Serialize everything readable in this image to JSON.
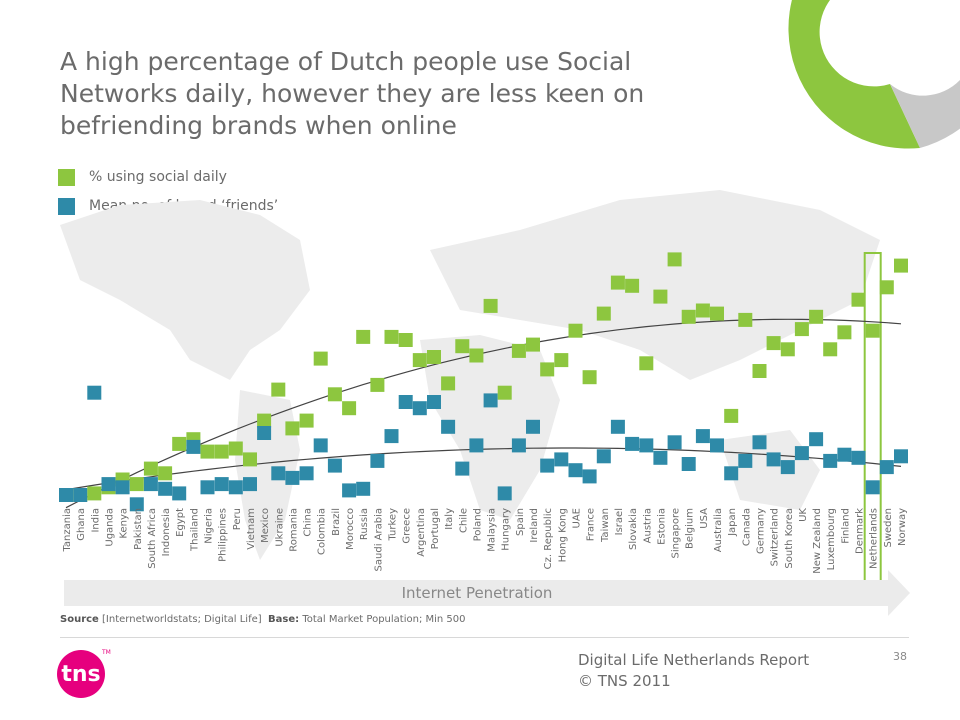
{
  "title": "A high percentage of Dutch people use Social Networks daily, however they are less keen on befriending brands when online",
  "legend": [
    {
      "label": "% using social daily",
      "color": "#8dc63f"
    },
    {
      "label": "Mean no. of brand ‘friends’",
      "color": "#2e8aa8"
    }
  ],
  "axis_arrow_label": "Internet Penetration",
  "highlight_category": "Netherlands",
  "source": {
    "label": "Source",
    "text": "[Internetworldstats; Digital Life]",
    "base_label": "Base:",
    "base_text": "Total Market Population; Min 500"
  },
  "footer": {
    "line1": "Digital Life  Netherlands  Report",
    "line2": "© TNS 2011",
    "page": "38"
  },
  "logo": {
    "text": "tns",
    "tm": "TM",
    "color": "#e6007e"
  },
  "chart_data": {
    "type": "scatter",
    "categories": [
      "Tanzania",
      "Ghana",
      "India",
      "Uganda",
      "Kenya",
      "Pakistan",
      "South Africa",
      "Indonesia",
      "Egypt",
      "Thailand",
      "Nigeria",
      "Philippines",
      "Peru",
      "Vietnam",
      "Mexico",
      "Ukraine",
      "Romania",
      "China",
      "Colombia",
      "Brazil",
      "Morocco",
      "Russia",
      "Saudi Arabia",
      "Turkey",
      "Greece",
      "Argentina",
      "Portugal",
      "Italy",
      "Chile",
      "Poland",
      "Malaysia",
      "Hungary",
      "Spain",
      "Ireland",
      "Cz. Republic",
      "Hong Kong",
      "UAE",
      "France",
      "Taiwan",
      "Israel",
      "Slovakia",
      "Austria",
      "Estonia",
      "Singapore",
      "Belgium",
      "USA",
      "Australia",
      "Japan",
      "Canada",
      "Germany",
      "Switzerland",
      "South Korea",
      "UK",
      "New Zealand",
      "Luxembourg",
      "Finland",
      "Denmark",
      "Netherlands",
      "Sweden",
      "Norway"
    ],
    "series": [
      {
        "name": "% using social daily",
        "color": "#8dc63f",
        "values": [
          0,
          0,
          1,
          5,
          10,
          7,
          17,
          14,
          33,
          36,
          28,
          28,
          30,
          23,
          48,
          68,
          43,
          48,
          88,
          65,
          56,
          102,
          71,
          102,
          100,
          87,
          89,
          72,
          96,
          90,
          122,
          66,
          93,
          97,
          81,
          87,
          106,
          76,
          117,
          137,
          135,
          85,
          128,
          152,
          115,
          119,
          117,
          51,
          113,
          80,
          98,
          94,
          107,
          115,
          94,
          105,
          126,
          106,
          134,
          148
        ]
      },
      {
        "name": "Mean no. of brand ‘friends’",
        "color": "#2e8aa8",
        "values": [
          0,
          0,
          66,
          7,
          5,
          -6,
          7,
          4,
          1,
          31,
          5,
          7,
          5,
          7,
          40,
          14,
          11,
          14,
          32,
          19,
          3,
          4,
          22,
          38,
          60,
          56,
          60,
          44,
          17,
          32,
          61,
          1,
          32,
          44,
          19,
          23,
          16,
          12,
          25,
          44,
          33,
          32,
          24,
          34,
          20,
          38,
          32,
          14,
          22,
          34,
          23,
          18,
          27,
          36,
          22,
          26,
          24,
          5,
          18,
          25
        ]
      }
    ],
    "trendlines": true,
    "ylim": [
      -10,
      160
    ],
    "grid": false,
    "legend_position": "top-left"
  }
}
